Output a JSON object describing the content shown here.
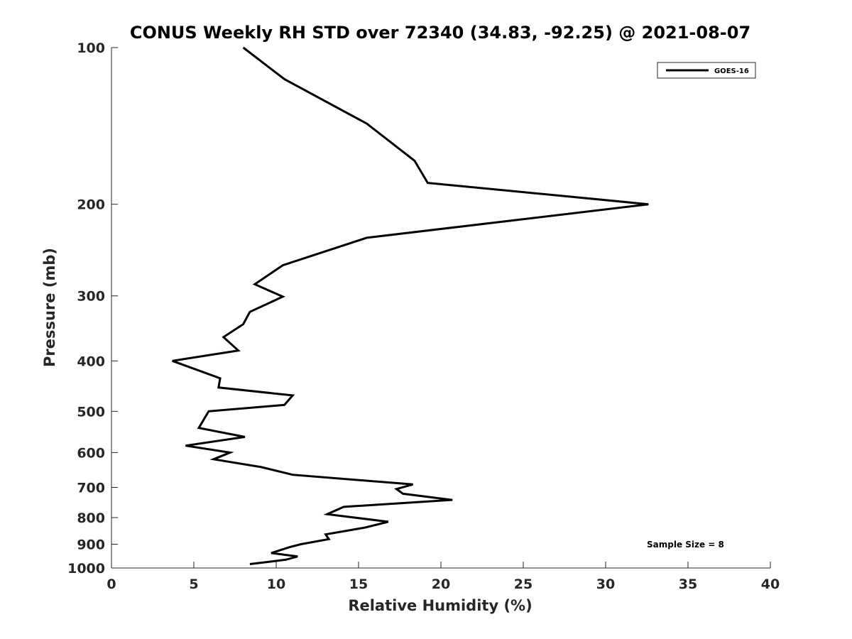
{
  "chart_data": {
    "type": "line",
    "title": "CONUS Weekly RH STD over 72340 (34.83, -92.25) @ 2021-08-07",
    "xlabel": "Relative Humidity (%)",
    "ylabel": "Pressure (mb)",
    "xlim": [
      0,
      40
    ],
    "ylim": [
      100,
      1000
    ],
    "yscale": "log",
    "y_reversed": true,
    "grid": false,
    "legend_position": "top-right",
    "xticks": [
      "0",
      "5",
      "10",
      "15",
      "20",
      "25",
      "30",
      "35",
      "40"
    ],
    "yticks": [
      "100",
      "200",
      "300",
      "400",
      "500",
      "600",
      "700",
      "800",
      "900",
      "1000"
    ],
    "annotation": "Sample Size = 8",
    "series": [
      {
        "name": "GOES-16",
        "color": "#000000",
        "x": [
          8.0,
          10.5,
          15.5,
          18.4,
          19.2,
          32.6,
          15.5,
          10.4,
          8.7,
          10.4,
          8.4,
          8.0,
          6.8,
          7.7,
          3.7,
          6.6,
          6.5,
          11.0,
          10.5,
          5.9,
          5.3,
          8.1,
          4.5,
          7.2,
          6.2,
          9.1,
          11.0,
          18.3,
          17.3,
          17.7,
          20.7,
          14.1,
          13.1,
          16.8,
          15.4,
          13.0,
          13.2,
          11.5,
          10.8,
          9.7,
          11.3,
          10.6,
          8.4
        ],
        "y": [
          100,
          115,
          140,
          165,
          182,
          200,
          232,
          262,
          285,
          301,
          322,
          340,
          360,
          382,
          400,
          432,
          450,
          466,
          486,
          500,
          538,
          560,
          582,
          600,
          618,
          640,
          662,
          691,
          705,
          720,
          740,
          763,
          788,
          815,
          836,
          862,
          880,
          900,
          912,
          936,
          950,
          964,
          983
        ]
      }
    ]
  }
}
